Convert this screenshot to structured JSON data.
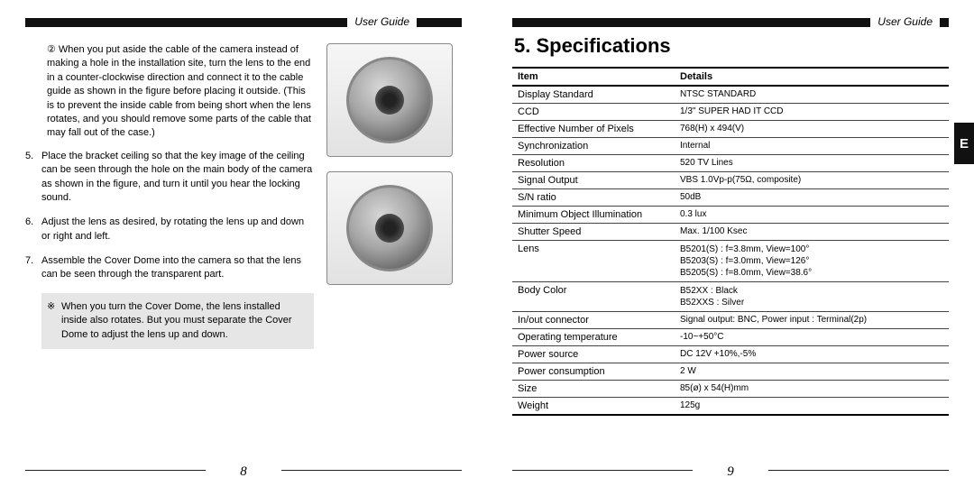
{
  "header": {
    "label": "User Guide"
  },
  "leftPage": {
    "circled2": "② When you put aside the cable of the camera instead of making a hole in the installation site, turn the lens to the end in a counter-clockwise direction and connect it to the cable guide as shown in the figure before placing it outside. (This is to prevent the inside cable from being short when the lens rotates, and you should remove some parts of the cable that may fall out of the case.)",
    "step5_marker": "5.",
    "step5": "Place the bracket ceiling so that the key image of the ceiling can be seen through the hole on the main body of the camera as shown in the figure, and turn it until you hear the locking sound.",
    "step6_marker": "6.",
    "step6": "Adjust the lens as desired, by rotating the lens up and down or right and left.",
    "step7_marker": "7.",
    "step7": "Assemble the Cover Dome into the camera so that the lens can be seen through the transparent part.",
    "callout_marker": "※",
    "callout": "When you turn the Cover Dome, the lens installed inside also rotates. But you must separate the Cover Dome to adjust the lens up and down.",
    "pageNumber": "8"
  },
  "rightPage": {
    "sectionTitle": "5. Specifications",
    "th_item": "Item",
    "th_details": "Details",
    "rows": [
      {
        "item": "Display Standard",
        "details": "NTSC STANDARD"
      },
      {
        "item": "CCD",
        "details": "1/3\" SUPER HAD IT CCD"
      },
      {
        "item": "Effective Number of Pixels",
        "details": "768(H) x 494(V)"
      },
      {
        "item": "Synchronization",
        "details": "Internal"
      },
      {
        "item": "Resolution",
        "details": "520 TV Lines"
      },
      {
        "item": "Signal Output",
        "details": "VBS 1.0Vp-p(75Ω, composite)"
      },
      {
        "item": "S/N ratio",
        "details": "50dB"
      },
      {
        "item": "Minimum Object Illumination",
        "details": "0.3 lux"
      },
      {
        "item": "Shutter Speed",
        "details": "Max. 1/100 Ksec"
      },
      {
        "item": "Lens",
        "details": "B5201(S) : f=3.8mm, View=100°\nB5203(S) : f=3.0mm, View=126°\nB5205(S) : f=8.0mm, View=38.6°"
      },
      {
        "item": "Body Color",
        "details": "B52XX    : Black\nB52XXS  : Silver"
      },
      {
        "item": "In/out connector",
        "details": "Signal output: BNC, Power input : Terminal(2p)"
      },
      {
        "item": "Operating temperature",
        "details": "-10~+50°C"
      },
      {
        "item": "Power source",
        "details": "DC 12V +10%,-5%"
      },
      {
        "item": "Power consumption",
        "details": "2 W"
      },
      {
        "item": "Size",
        "details": "85(ø) x 54(H)mm"
      },
      {
        "item": "Weight",
        "details": "125g"
      }
    ],
    "sideTab": "E",
    "pageNumber": "9"
  },
  "style": {
    "pageWidth": 1080,
    "pageHeight": 540,
    "headerLineColor": "#111111",
    "bodyFontSize": 11,
    "tableFontSize": 10,
    "titleFontSize": 22,
    "calloutBg": "#e6e6e6",
    "borderColor": "#444444"
  }
}
